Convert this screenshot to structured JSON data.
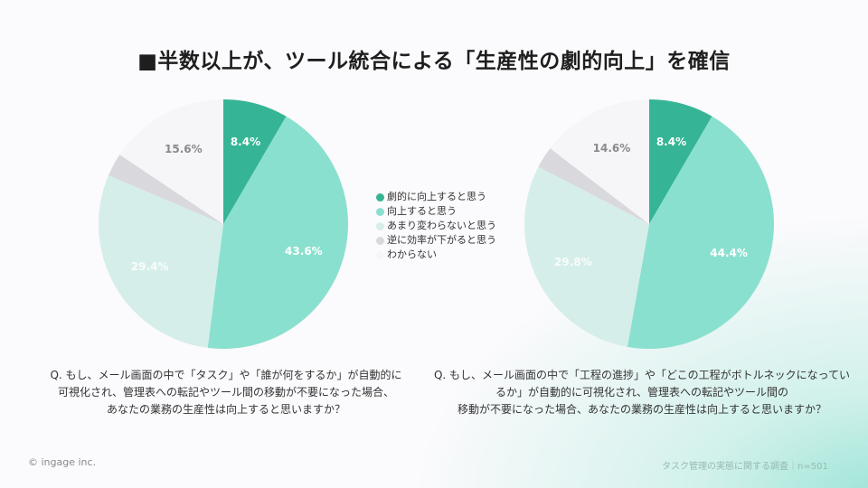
{
  "title": "■半数以上が、ツール統合による「生産性の劇的向上」を確信",
  "legend": [
    {
      "label": "劇的に向上すると思う",
      "color": "#35b595"
    },
    {
      "label": "向上すると思う",
      "color": "#8ae0cf"
    },
    {
      "label": "あまり変わらないと思う",
      "color": "#d6eeea"
    },
    {
      "label": "逆に効率が下がると思う",
      "color": "#d9d8dc"
    },
    {
      "label": "わからない",
      "color": "#f6f5f8"
    }
  ],
  "left": {
    "labels": [
      "8.4%",
      "43.6%",
      "29.4%",
      "",
      "15.6%"
    ],
    "question": [
      "Q. もし、メール画面の中で「タスク」や「誰が何をするか」が自動的に",
      "可視化され、管理表への転記やツール間の移動が不要になった場合、",
      "あなたの業務の生産性は向上すると思いますか？"
    ]
  },
  "right": {
    "labels": [
      "8.4%",
      "44.4%",
      "29.8%",
      "",
      "14.6%"
    ],
    "question": [
      "Q. もし、メール画面の中で「工程の進捗」や「どこの工程がボトルネックになってい",
      "るか」が自動的に可視化され、管理表への転記やツール間の",
      "移動が不要になった場合、あなたの業務の生産性は向上すると思いますか？"
    ]
  },
  "footer": {
    "copyright": "© ingage inc.",
    "source": "タスク管理の実態に関する調査｜n=501"
  },
  "chart_data": [
    {
      "type": "pie",
      "title": "■半数以上が、ツール統合による「生産性の劇的向上」を確信",
      "categories": [
        "劇的に向上すると思う",
        "向上すると思う",
        "あまり変わらないと思う",
        "逆に効率が下がると思う",
        "わからない"
      ],
      "values": [
        8.4,
        43.6,
        29.4,
        3.0,
        15.6
      ],
      "colors": [
        "#35b595",
        "#8ae0cf",
        "#d6eeea",
        "#d9d8dc",
        "#f6f5f8"
      ],
      "legend_position": "center-between-charts"
    },
    {
      "type": "pie",
      "title": "■半数以上が、ツール統合による「生産性の劇的向上」を確信",
      "categories": [
        "劇的に向上すると思う",
        "向上すると思う",
        "あまり変わらないと思う",
        "逆に効率が下がると思う",
        "わからない"
      ],
      "values": [
        8.4,
        44.4,
        29.8,
        2.8,
        14.6
      ],
      "colors": [
        "#35b595",
        "#8ae0cf",
        "#d6eeea",
        "#d9d8dc",
        "#f6f5f8"
      ],
      "legend_position": "center-between-charts"
    }
  ]
}
